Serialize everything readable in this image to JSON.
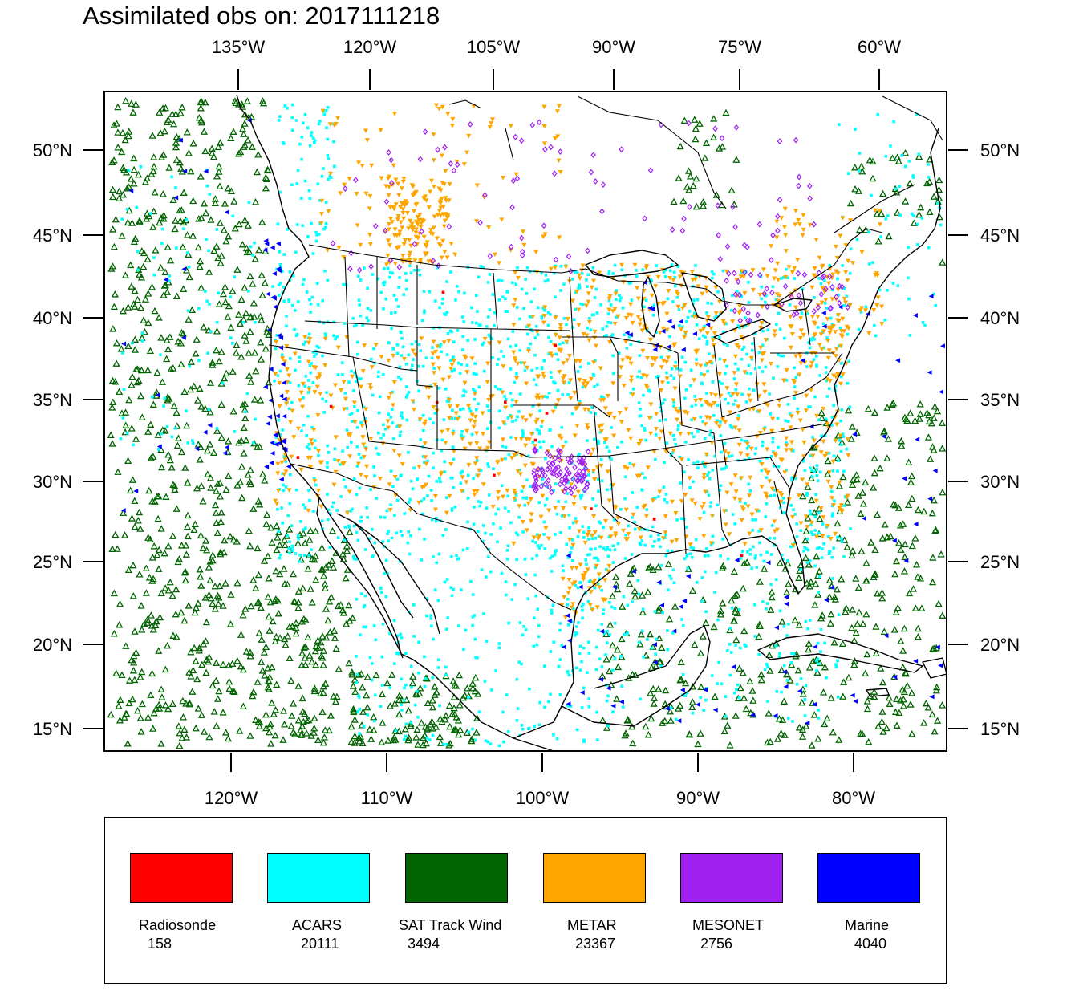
{
  "title": "Assimilated obs on: 2017111218",
  "top_lon_labels": [
    "135°W",
    "120°W",
    "105°W",
    "90°W",
    "75°W",
    "60°W"
  ],
  "bottom_lon_labels": [
    "120°W",
    "110°W",
    "100°W",
    "90°W",
    "80°W"
  ],
  "lat_labels": [
    "50°N",
    "45°N",
    "40°N",
    "35°N",
    "30°N",
    "25°N",
    "20°N",
    "15°N"
  ],
  "legend": [
    {
      "label": "Radiosonde",
      "count": "158",
      "color": "#ff0000"
    },
    {
      "label": "ACARS",
      "count": "20111",
      "color": "#00ffff"
    },
    {
      "label": "SAT Track Wind",
      "count": "3494",
      "color": "#006400"
    },
    {
      "label": "METAR",
      "count": "23367",
      "color": "#ffa500"
    },
    {
      "label": "MESONET",
      "count": "2756",
      "color": "#a020f0"
    },
    {
      "label": "Marine",
      "count": "4040",
      "color": "#0000ff"
    }
  ]
}
